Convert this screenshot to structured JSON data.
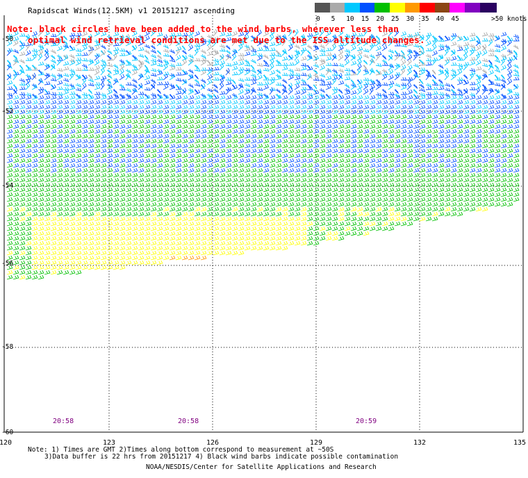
{
  "title": "Rapidscat Winds(12.5KM) v1 20151217 ascending",
  "note_line1": "Note: black circles have been added to the wind barbs, wherever less than",
  "note_line2": "optimal wind retrieval conditions are met due to the ISS altitude changes.",
  "legend": {
    "unit": ">50 knots",
    "swatches": [
      {
        "label": "0",
        "color": "#555555"
      },
      {
        "label": "5",
        "color": "#aaaaaa"
      },
      {
        "label": "10",
        "color": "#00c8ff"
      },
      {
        "label": "15",
        "color": "#0050ff"
      },
      {
        "label": "20",
        "color": "#00c000"
      },
      {
        "label": "25",
        "color": "#ffff00"
      },
      {
        "label": "30",
        "color": "#ff9900"
      },
      {
        "label": "35",
        "color": "#ff0000"
      },
      {
        "label": "40",
        "color": "#8b4513"
      },
      {
        "label": "45",
        "color": "#ff00ff"
      },
      {
        "label": "",
        "color": "#8000c0"
      },
      {
        "label": "",
        "color": "#2a0060"
      }
    ]
  },
  "axes": {
    "x_ticks": [
      "120",
      "123",
      "126",
      "129",
      "132",
      "135"
    ],
    "y_ticks": [
      "-50",
      "-52",
      "-54",
      "-56",
      "-58",
      "-60"
    ]
  },
  "times": [
    "20:58",
    "20:58",
    "20:59"
  ],
  "footer": {
    "line1": "Note: 1) Times are GMT 2)Times along bottom correspond to measurement at ~50S",
    "line2": "3)Data buffer is 22 hrs from 20151217 4) Black wind barbs indicate possible contamination",
    "line3": "NOAA/NESDIS/Center for Satellite Applications and Research"
  }
}
